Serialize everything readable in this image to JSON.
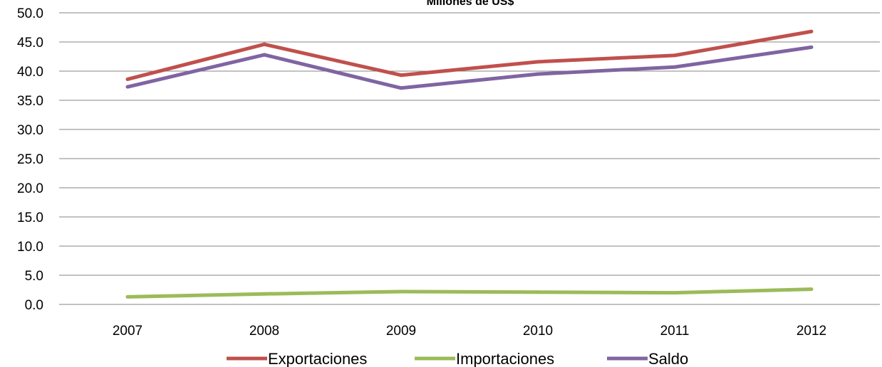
{
  "chart_data": {
    "type": "line",
    "title": "Millones de US$",
    "categories": [
      "2007",
      "2008",
      "2009",
      "2010",
      "2011",
      "2012"
    ],
    "ylim": [
      0,
      50
    ],
    "y_ticks": [
      0,
      5,
      10,
      15,
      20,
      25,
      30,
      35,
      40,
      45,
      50
    ],
    "grid": true,
    "legend_position": "bottom",
    "series": [
      {
        "name": "Exportaciones",
        "color": "#c0504d",
        "values": [
          38.6,
          44.6,
          39.3,
          41.6,
          42.7,
          46.8
        ]
      },
      {
        "name": "Importaciones",
        "color": "#9bbb59",
        "values": [
          1.3,
          1.8,
          2.2,
          2.1,
          2.0,
          2.6
        ]
      },
      {
        "name": "Saldo",
        "color": "#8064a2",
        "values": [
          37.3,
          42.8,
          37.1,
          39.5,
          40.7,
          44.1
        ]
      }
    ]
  }
}
